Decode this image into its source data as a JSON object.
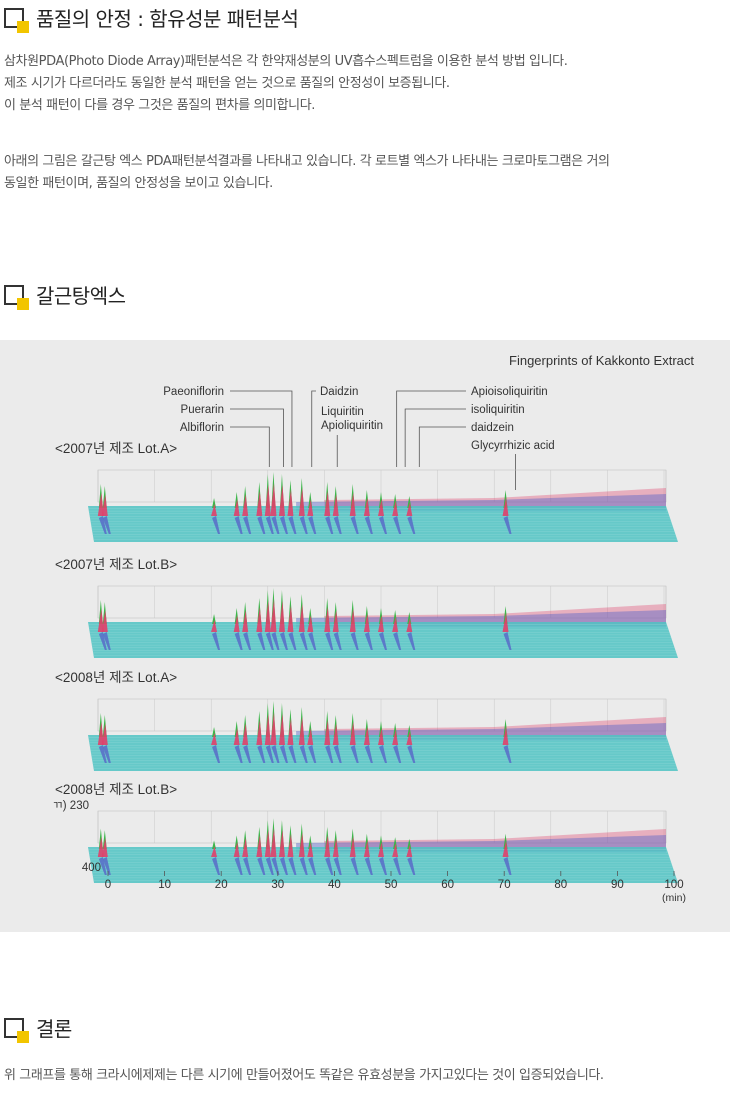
{
  "section1": {
    "title": "품질의 안정 : 함유성분 패턴분석",
    "lines": [
      "삼차원PDA(Photo Diode Array)패턴분석은 각 한약재성분의 UV흡수스펙트럼을 이용한 분석 방법 입니다.",
      "제조 시기가 다르더라도 동일한 분석 패턴을 얻는 것으로 품질의 안정성이 보증됩니다.",
      "이 분석 패턴이 다를 경우 그것은 품질의 편차를 의미합니다."
    ],
    "lines2": [
      "아래의 그림은 갈근탕 엑스 PDA패턴분석결과를 나타내고 있습니다. 각 로트별 엑스가 나타내는 크로마토그램은 거의",
      "동일한 패턴이며, 품질의 안정성을 보이고 있습니다."
    ]
  },
  "section2": {
    "title": "갈근탕엑스"
  },
  "figure": {
    "title": "Fingerprints of Kakkonto Extract",
    "compounds_left": [
      "Paeoniflorin",
      "Puerarin",
      "Albiflorin"
    ],
    "compounds_mid": [
      "Daidzin",
      "Liquiritin",
      "Apioliquiritin"
    ],
    "compounds_right": [
      "Apioisoliquiritin",
      "isoliquiritin",
      "daidzein",
      "Glycyrrhizic acid"
    ],
    "lots": [
      "<2007년 제조 Lot.A>",
      "<2007년 제조 Lot.B>",
      "<2008년 제조 Lot.A>",
      "<2008년 제조 Lot.B>"
    ],
    "wavelength_label_top": "ㄲ) 230",
    "wavelength_label_bottom": "400",
    "x_ticks": [
      "0",
      "10",
      "20",
      "30",
      "40",
      "50",
      "60",
      "70",
      "80",
      "90",
      "100"
    ],
    "x_unit": "(min)"
  },
  "chart_data": {
    "type": "area",
    "title": "Fingerprints of Kakkonto Extract",
    "xlabel": "(min)",
    "x_range": [
      0,
      100
    ],
    "y_range_nm": [
      230,
      400
    ],
    "series": [
      {
        "name": "<2007년 제조 Lot.A>"
      },
      {
        "name": "<2007년 제조 Lot.B>"
      },
      {
        "name": "<2008년 제조 Lot.A>"
      },
      {
        "name": "<2008년 제조 Lot.B>"
      }
    ],
    "peaks_min": [
      0.5,
      1.2,
      20.5,
      24.5,
      26.0,
      28.5,
      30.0,
      31.0,
      32.5,
      34.0,
      36.0,
      37.5,
      40.5,
      42.0,
      45.0,
      47.5,
      50.0,
      52.5,
      55.0,
      72.0
    ]
  },
  "section3": {
    "title": "결론",
    "text": "위 그래프를 통해 크라시에제제는 다른 시기에 만들어졌어도 똑같은 유효성분을 가지고있다는 것이 입증되었습니다."
  },
  "colors": {
    "accent": "#f2c500",
    "teal": "#4fc3c3",
    "blue": "#5865c8",
    "red": "#e0406a",
    "green": "#3db54a"
  }
}
